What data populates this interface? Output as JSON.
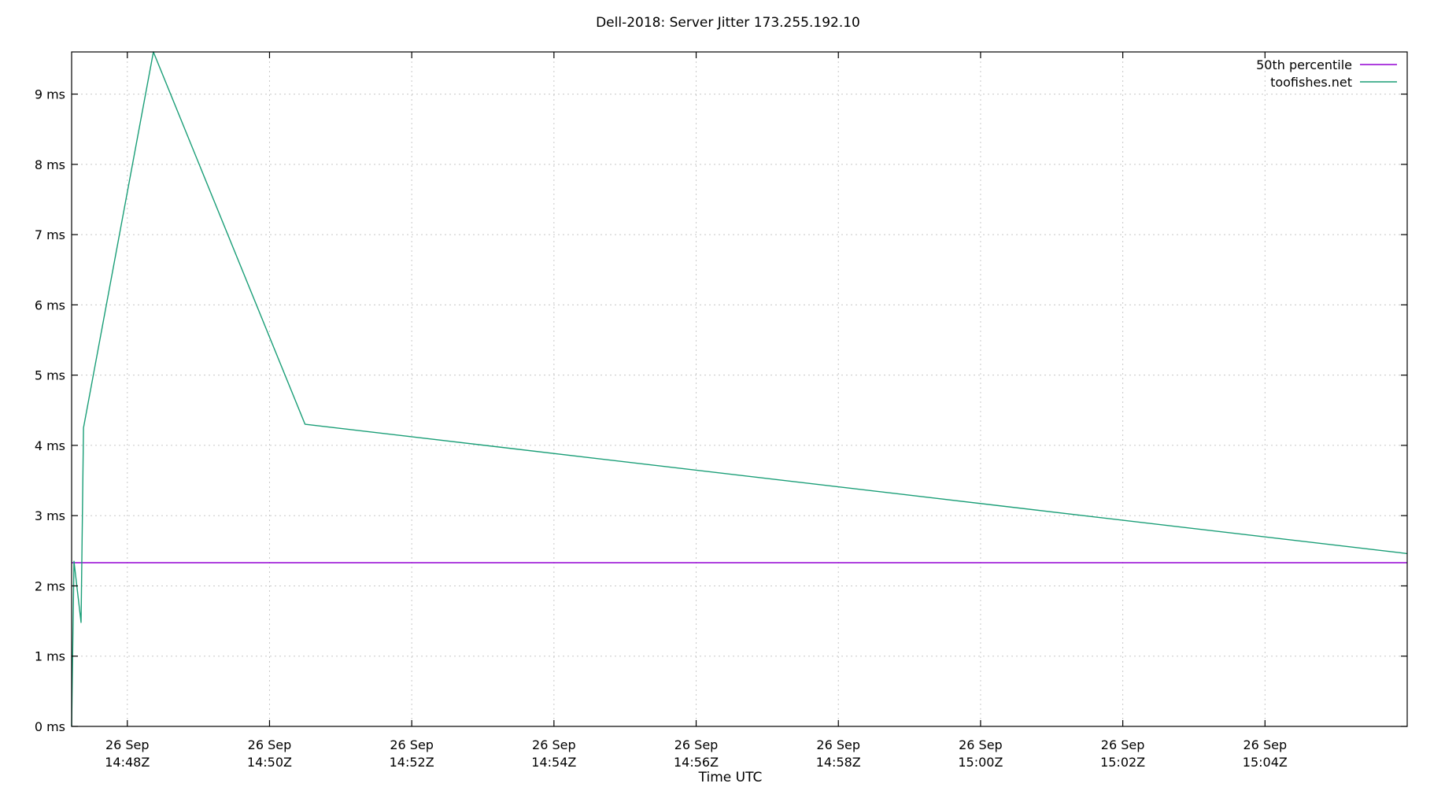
{
  "chart_data": {
    "type": "line",
    "title": "Dell-2018: Server Jitter 173.255.192.10",
    "xlabel": "Time UTC",
    "ylabel": "",
    "x_axis": {
      "type": "time",
      "range": [
        "2024-09-26T14:47:13Z",
        "2024-09-26T15:06:00Z"
      ],
      "ticks": [
        {
          "x": "2024-09-26T14:48:00Z",
          "label_top": "26 Sep",
          "label_bottom": "14:48Z"
        },
        {
          "x": "2024-09-26T14:50:00Z",
          "label_top": "26 Sep",
          "label_bottom": "14:50Z"
        },
        {
          "x": "2024-09-26T14:52:00Z",
          "label_top": "26 Sep",
          "label_bottom": "14:52Z"
        },
        {
          "x": "2024-09-26T14:54:00Z",
          "label_top": "26 Sep",
          "label_bottom": "14:54Z"
        },
        {
          "x": "2024-09-26T14:56:00Z",
          "label_top": "26 Sep",
          "label_bottom": "14:56Z"
        },
        {
          "x": "2024-09-26T14:58:00Z",
          "label_top": "26 Sep",
          "label_bottom": "14:58Z"
        },
        {
          "x": "2024-09-26T15:00:00Z",
          "label_top": "26 Sep",
          "label_bottom": "15:00Z"
        },
        {
          "x": "2024-09-26T15:02:00Z",
          "label_top": "26 Sep",
          "label_bottom": "15:02Z"
        },
        {
          "x": "2024-09-26T15:04:00Z",
          "label_top": "26 Sep",
          "label_bottom": "15:04Z"
        }
      ]
    },
    "y_axis": {
      "range": [
        0,
        9.6
      ],
      "ticks": [
        {
          "y": 0,
          "label": "0 ms"
        },
        {
          "y": 1,
          "label": "1 ms"
        },
        {
          "y": 2,
          "label": "2 ms"
        },
        {
          "y": 3,
          "label": "3 ms"
        },
        {
          "y": 4,
          "label": "4 ms"
        },
        {
          "y": 5,
          "label": "5 ms"
        },
        {
          "y": 6,
          "label": "6 ms"
        },
        {
          "y": 7,
          "label": "7 ms"
        },
        {
          "y": 8,
          "label": "8 ms"
        },
        {
          "y": 9,
          "label": "9 ms"
        }
      ]
    },
    "grid": true,
    "legend": "top-right",
    "series": [
      {
        "name": "50th percentile",
        "color": "#9400d3",
        "points": [
          {
            "x": "2024-09-26T14:47:13Z",
            "y": 2.33
          },
          {
            "x": "2024-09-26T15:06:00Z",
            "y": 2.33
          }
        ]
      },
      {
        "name": "toofishes.net",
        "color": "#1a9e77",
        "points": [
          {
            "x": "2024-09-26T14:47:13Z",
            "y": 0.0
          },
          {
            "x": "2024-09-26T14:47:15Z",
            "y": 2.35
          },
          {
            "x": "2024-09-26T14:47:21Z",
            "y": 1.48
          },
          {
            "x": "2024-09-26T14:47:23Z",
            "y": 4.25
          },
          {
            "x": "2024-09-26T14:48:22Z",
            "y": 9.6
          },
          {
            "x": "2024-09-26T14:50:30Z",
            "y": 4.3
          },
          {
            "x": "2024-09-26T15:06:00Z",
            "y": 2.46
          }
        ]
      }
    ]
  }
}
